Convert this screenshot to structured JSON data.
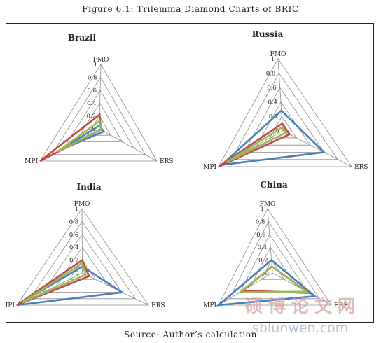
{
  "figure": {
    "title": "Figure 6.1: Trilemma Diamond Charts of BRIC",
    "source": "Source: Author’s calculation"
  },
  "colors": {
    "blue": "#4a7ebb",
    "red": "#be4b48",
    "green": "#98b954",
    "grid": "#8c8c8c",
    "watermark": "#d59e9c",
    "watermark_sub": "#aab8cc"
  },
  "watermark": {
    "main": "硕博论文网",
    "sub": "sblunwen.com"
  },
  "chart_data": [
    {
      "type": "radar",
      "title": "Brazil",
      "axes": [
        "FMO",
        "ERS",
        "MPI"
      ],
      "rmax": 1,
      "ticks": [
        "0",
        "0.2",
        "0.4",
        "0.6",
        "0.8",
        "1"
      ],
      "series": [
        {
          "color": "blue",
          "values": [
            0.05,
            0.08,
            0.65
          ]
        },
        {
          "color": "red",
          "values": [
            0.22,
            0.03,
            1.0
          ]
        },
        {
          "color": "green",
          "values": [
            0.12,
            0.03,
            0.7
          ]
        }
      ]
    },
    {
      "type": "radar",
      "title": "Russia",
      "axes": [
        "FMO",
        "ERS",
        "MPI"
      ],
      "rmax": 1,
      "ticks": [
        "0",
        "0.2",
        "0.4",
        "0.6",
        "0.8",
        "1"
      ],
      "series": [
        {
          "color": "blue",
          "values": [
            0.28,
            0.6,
            0.95
          ]
        },
        {
          "color": "red",
          "values": [
            0.1,
            0.1,
            1.0
          ]
        },
        {
          "color": "green",
          "values": [
            0.05,
            0.05,
            0.88
          ]
        }
      ]
    },
    {
      "type": "radar",
      "title": "India",
      "axes": [
        "FMO",
        "ERS",
        "MPI"
      ],
      "rmax": 1,
      "ticks": [
        "0",
        "0.2",
        "0.4",
        "0.6",
        "0.8",
        "1"
      ],
      "series": [
        {
          "color": "blue",
          "values": [
            0.1,
            0.6,
            1.0
          ]
        },
        {
          "color": "red",
          "values": [
            0.2,
            0.1,
            1.0
          ]
        },
        {
          "color": "green",
          "values": [
            0.15,
            0.05,
            0.92
          ]
        }
      ]
    },
    {
      "type": "radar",
      "title": "China",
      "axes": [
        "FMO",
        "ERS",
        "MPI"
      ],
      "rmax": 1,
      "ticks": [
        "0",
        "0.2",
        "0.4",
        "0.6",
        "0.8",
        "1"
      ],
      "series": [
        {
          "color": "blue",
          "values": [
            0.2,
            0.72,
            1.0
          ]
        },
        {
          "color": "red",
          "values": [
            0.1,
            0.62,
            0.55
          ]
        },
        {
          "color": "green",
          "values": [
            0.1,
            0.58,
            0.6
          ]
        }
      ]
    }
  ]
}
